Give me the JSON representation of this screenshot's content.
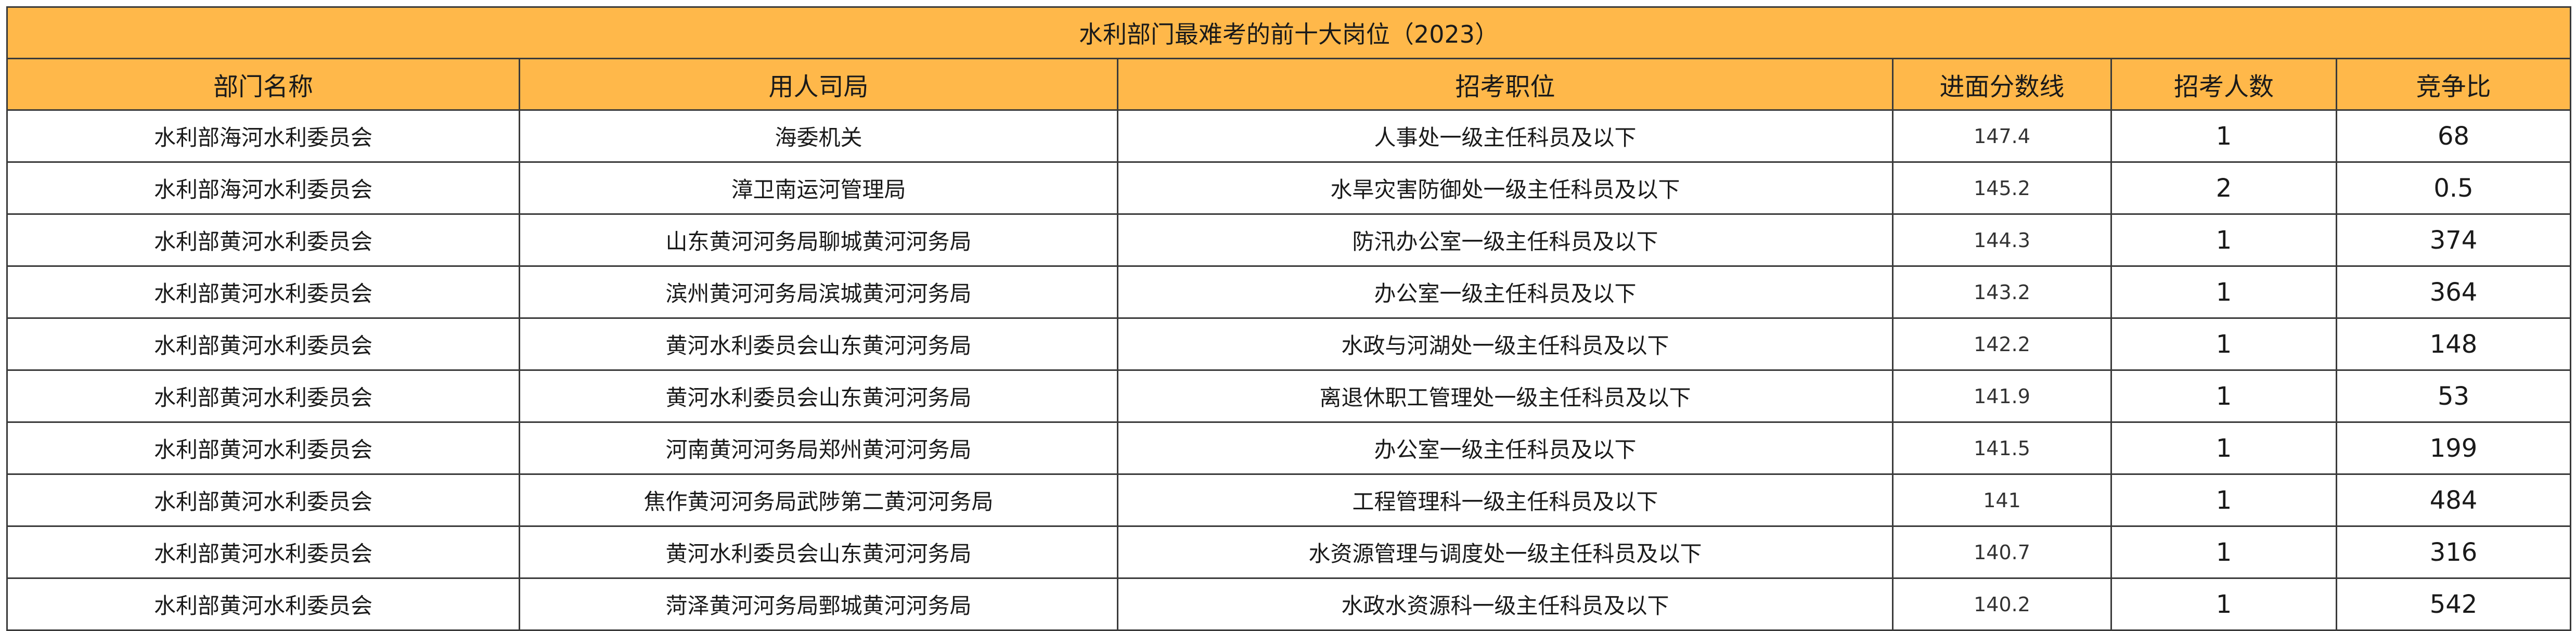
{
  "table": {
    "title": "水利部门最难考的前十大岗位（2023）",
    "headers": [
      "部门名称",
      "用人司局",
      "招考职位",
      "进面分数线",
      "招考人数",
      "竞争比"
    ],
    "rows": [
      [
        "水利部海河水利委员会",
        "海委机关",
        "人事处一级主任科员及以下",
        "147.4",
        "1",
        "68"
      ],
      [
        "水利部海河水利委员会",
        "漳卫南运河管理局",
        "水旱灾害防御处一级主任科员及以下",
        "145.2",
        "2",
        "0.5"
      ],
      [
        "水利部黄河水利委员会",
        "山东黄河河务局聊城黄河河务局",
        "防汛办公室一级主任科员及以下",
        "144.3",
        "1",
        "374"
      ],
      [
        "水利部黄河水利委员会",
        "滨州黄河河务局滨城黄河河务局",
        "办公室一级主任科员及以下",
        "143.2",
        "1",
        "364"
      ],
      [
        "水利部黄河水利委员会",
        "黄河水利委员会山东黄河河务局",
        "水政与河湖处一级主任科员及以下",
        "142.2",
        "1",
        "148"
      ],
      [
        "水利部黄河水利委员会",
        "黄河水利委员会山东黄河河务局",
        "离退休职工管理处一级主任科员及以下",
        "141.9",
        "1",
        "53"
      ],
      [
        "水利部黄河水利委员会",
        "河南黄河河务局郑州黄河河务局",
        "办公室一级主任科员及以下",
        "141.5",
        "1",
        "199"
      ],
      [
        "水利部黄河水利委员会",
        "焦作黄河河务局武陟第二黄河河务局",
        "工程管理科一级主任科员及以下",
        "141",
        "1",
        "484"
      ],
      [
        "水利部黄河水利委员会",
        "黄河水利委员会山东黄河河务局",
        "水资源管理与调度处一级主任科员及以下",
        "140.7",
        "1",
        "316"
      ],
      [
        "水利部黄河水利委员会",
        "菏泽黄河河务局鄄城黄河河务局",
        "水政水资源科一级主任科员及以下",
        "140.2",
        "1",
        "542"
      ]
    ]
  },
  "colors": {
    "header_fill": "#ffb84a",
    "grid": "#3a3a3a"
  }
}
